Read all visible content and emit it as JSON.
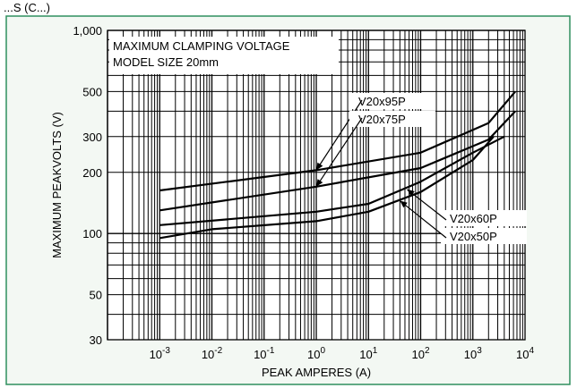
{
  "figure_header": "...S (C...)",
  "chart_data": {
    "type": "line",
    "title_lines": [
      "MAXIMUM CLAMPING VOLTAGE",
      "MODEL SIZE 20mm"
    ],
    "xlabel": "PEAK AMPERES (A)",
    "ylabel": "MAXIMUM PEAKVOLTS (V)",
    "x_scale": "log",
    "y_scale": "log",
    "xlim": [
      0.0001,
      10000
    ],
    "ylim": [
      30,
      1000
    ],
    "x_ticks": [
      {
        "value": 0.001,
        "base": "10",
        "exp": "-3"
      },
      {
        "value": 0.01,
        "base": "10",
        "exp": "-2"
      },
      {
        "value": 0.1,
        "base": "10",
        "exp": "-1"
      },
      {
        "value": 1,
        "base": "10",
        "exp": "0"
      },
      {
        "value": 10,
        "base": "10",
        "exp": "1"
      },
      {
        "value": 100,
        "base": "10",
        "exp": "2"
      },
      {
        "value": 1000,
        "base": "10",
        "exp": "3"
      },
      {
        "value": 10000,
        "base": "10",
        "exp": "4"
      }
    ],
    "y_ticks": [
      {
        "value": 30,
        "label": "30"
      },
      {
        "value": 50,
        "label": "50"
      },
      {
        "value": 100,
        "label": "100"
      },
      {
        "value": 200,
        "label": "200"
      },
      {
        "value": 300,
        "label": "300"
      },
      {
        "value": 500,
        "label": "500"
      },
      {
        "value": 1000,
        "label": "1,000"
      }
    ],
    "grid": true,
    "series": [
      {
        "name": "V20x95P",
        "x": [
          0.001,
          1,
          100,
          2000,
          6500
        ],
        "y": [
          163,
          205,
          250,
          350,
          500
        ]
      },
      {
        "name": "V20x75P",
        "x": [
          0.001,
          1,
          100,
          2000,
          6500
        ],
        "y": [
          130,
          170,
          210,
          290,
          400
        ]
      },
      {
        "name": "V20x60P",
        "x": [
          0.001,
          1,
          10,
          100,
          1000,
          4000
        ],
        "y": [
          110,
          128,
          140,
          180,
          250,
          300
        ]
      },
      {
        "name": "V20x50P",
        "x": [
          0.001,
          0.01,
          1,
          10,
          100,
          1000,
          2500
        ],
        "y": [
          95,
          105,
          115,
          128,
          160,
          230,
          300
        ]
      }
    ],
    "callouts": [
      {
        "label": "V20x95P",
        "target_series": "V20x95P"
      },
      {
        "label": "V20x75P",
        "target_series": "V20x75P"
      },
      {
        "label": "V20x60P",
        "target_series": "V20x60P"
      },
      {
        "label": "V20x50P",
        "target_series": "V20x50P"
      }
    ]
  }
}
